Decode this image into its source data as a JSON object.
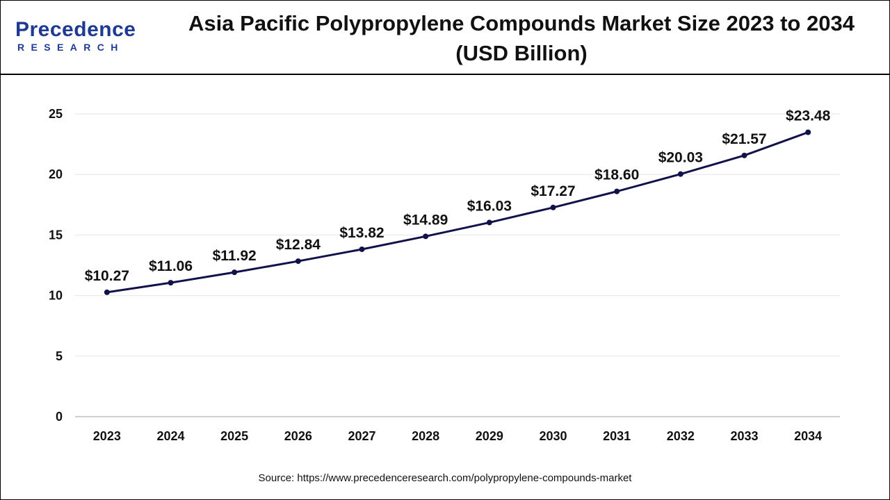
{
  "brand": {
    "name": "Precedence",
    "sub": "RESEARCH"
  },
  "title": "Asia Pacific Polypropylene Compounds Market Size 2023 to 2034 (USD Billion)",
  "source": "Source: https://www.precedenceresearch.com/polypropylene-compounds-market",
  "colors": {
    "line": "#12124a",
    "grid": "#e6e6e6",
    "axis": "#bfbfbf",
    "brand": "#1f3a93"
  },
  "chart_data": {
    "type": "line",
    "title": "Asia Pacific Polypropylene Compounds Market Size 2023 to 2034 (USD Billion)",
    "xlabel": "",
    "ylabel": "",
    "ylim": [
      0,
      25
    ],
    "yticks": [
      0,
      5,
      10,
      15,
      20,
      25
    ],
    "grid": true,
    "categories": [
      "2023",
      "2024",
      "2025",
      "2026",
      "2027",
      "2028",
      "2029",
      "2030",
      "2031",
      "2032",
      "2033",
      "2034"
    ],
    "values": [
      10.27,
      11.06,
      11.92,
      12.84,
      13.82,
      14.89,
      16.03,
      17.27,
      18.6,
      20.03,
      21.57,
      23.48
    ],
    "data_labels": [
      "$10.27",
      "$11.06",
      "$11.92",
      "$12.84",
      "$13.82",
      "$14.89",
      "$16.03",
      "$17.27",
      "$18.60",
      "$20.03",
      "$21.57",
      "$23.48"
    ]
  }
}
